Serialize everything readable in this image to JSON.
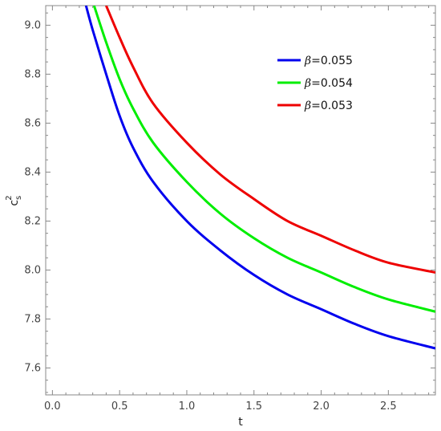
{
  "chart_data": {
    "type": "line",
    "xlabel": "t",
    "ylabel_base": "c",
    "ylabel_sub": "s",
    "ylabel_sup": "2",
    "xlim": [
      -0.05,
      2.85
    ],
    "ylim": [
      7.49,
      9.08
    ],
    "x_ticks": [
      0.0,
      0.5,
      1.0,
      1.5,
      2.0,
      2.5
    ],
    "x_tick_labels": [
      "0.0",
      "0.5",
      "1.0",
      "1.5",
      "2.0",
      "2.5"
    ],
    "y_ticks": [
      7.6,
      7.8,
      8.0,
      8.2,
      8.4,
      8.6,
      8.8,
      9.0
    ],
    "y_tick_labels": [
      "7.6",
      "7.8",
      "8.0",
      "8.2",
      "8.4",
      "8.6",
      "8.8",
      "9.0"
    ],
    "grid": false,
    "frame": true,
    "legend_position": "top-right",
    "series": [
      {
        "name": "β=0.055",
        "legend_symbol": "β",
        "legend_value": "=0.055",
        "color": "#0000ee",
        "x": [
          0.25,
          0.3,
          0.4,
          0.5,
          0.6,
          0.75,
          1.0,
          1.25,
          1.5,
          1.75,
          2.0,
          2.25,
          2.5,
          2.85
        ],
        "y": [
          9.08,
          8.98,
          8.8,
          8.63,
          8.5,
          8.36,
          8.2,
          8.08,
          7.98,
          7.9,
          7.84,
          7.78,
          7.73,
          7.68
        ]
      },
      {
        "name": "β=0.054",
        "legend_symbol": "β",
        "legend_value": "=0.054",
        "color": "#00ee00",
        "x": [
          0.31,
          0.4,
          0.5,
          0.6,
          0.75,
          1.0,
          1.25,
          1.5,
          1.75,
          2.0,
          2.25,
          2.5,
          2.85
        ],
        "y": [
          9.08,
          8.93,
          8.78,
          8.66,
          8.52,
          8.36,
          8.23,
          8.13,
          8.05,
          7.99,
          7.93,
          7.88,
          7.83
        ]
      },
      {
        "name": "β=0.053",
        "legend_symbol": "β",
        "legend_value": "=0.053",
        "color": "#ee0000",
        "x": [
          0.4,
          0.5,
          0.6,
          0.75,
          1.0,
          1.25,
          1.5,
          1.75,
          2.0,
          2.25,
          2.5,
          2.85
        ],
        "y": [
          9.08,
          8.95,
          8.83,
          8.68,
          8.52,
          8.39,
          8.29,
          8.2,
          8.14,
          8.08,
          8.03,
          7.99
        ]
      }
    ]
  }
}
